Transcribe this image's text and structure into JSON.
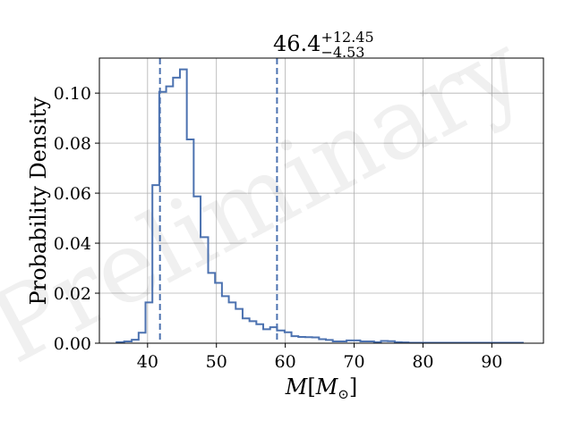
{
  "chart_data": {
    "type": "histogram",
    "title": {
      "base": "46.4",
      "upper": "+12.45",
      "lower": "−4.53"
    },
    "xlabel": "M[M⊙]",
    "xlabel_parts": {
      "main": "M",
      "open": "[",
      "sub_main": "M",
      "sub": "⊙",
      "close": "]"
    },
    "ylabel": "Probability Density",
    "xlim": [
      33.0,
      97.5
    ],
    "ylim": [
      0.0,
      0.114
    ],
    "xticks": [
      40,
      50,
      60,
      70,
      80,
      90
    ],
    "yticks": [
      0.0,
      0.02,
      0.04,
      0.06,
      0.08,
      0.1
    ],
    "ytick_labels": [
      "0.00",
      "0.02",
      "0.04",
      "0.06",
      "0.08",
      "0.10"
    ],
    "grid": true,
    "watermark": "Preliminary",
    "line_color": "#4c72b0",
    "series": [
      {
        "bin_edges": [
          35.5,
          36.6,
          37.7,
          38.7,
          39.7,
          40.7,
          41.7,
          42.7,
          43.7,
          44.7,
          45.7,
          46.7,
          47.7,
          48.8,
          49.8,
          50.8,
          51.8,
          52.8,
          53.8,
          54.8,
          55.8,
          56.8,
          57.8,
          58.8,
          59.9,
          60.9,
          61.9,
          62.9,
          63.9,
          64.9,
          65.9,
          66.9,
          67.9,
          68.9,
          69.9,
          70.9,
          71.9,
          72.9,
          73.9,
          74.9,
          75.9,
          76.9,
          77.9,
          78.9,
          79.9,
          80.9,
          94.5
        ],
        "densities": [
          0.0004,
          0.0007,
          0.0014,
          0.0042,
          0.0163,
          0.0632,
          0.1005,
          0.1027,
          0.1062,
          0.1095,
          0.0815,
          0.0587,
          0.0424,
          0.0281,
          0.0241,
          0.0188,
          0.0163,
          0.0137,
          0.0099,
          0.0088,
          0.0076,
          0.0056,
          0.0064,
          0.0051,
          0.0044,
          0.0028,
          0.0025,
          0.0024,
          0.0023,
          0.0016,
          0.0013,
          0.0007,
          0.0007,
          0.0011,
          0.0011,
          0.0007,
          0.0007,
          0.0004,
          0.0009,
          0.0008,
          0.0004,
          0.0003,
          0.0002,
          0.0002,
          0.0002,
          0.0002
        ]
      }
    ],
    "vlines": [
      41.8,
      58.8
    ]
  }
}
